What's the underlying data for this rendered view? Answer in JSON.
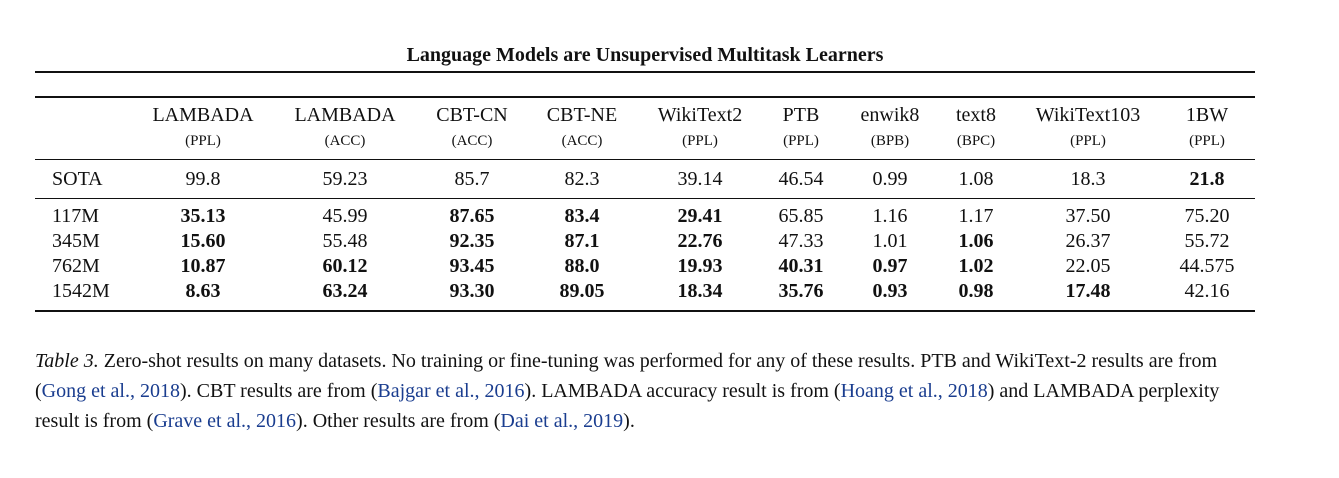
{
  "running_head": "Language Models are Unsupervised Multitask Learners",
  "table": {
    "columns": [
      {
        "name": "LAMBADA",
        "metric": "(PPL)"
      },
      {
        "name": "LAMBADA",
        "metric": "(ACC)"
      },
      {
        "name": "CBT-CN",
        "metric": "(ACC)"
      },
      {
        "name": "CBT-NE",
        "metric": "(ACC)"
      },
      {
        "name": "WikiText2",
        "metric": "(PPL)"
      },
      {
        "name": "PTB",
        "metric": "(PPL)"
      },
      {
        "name": "enwik8",
        "metric": "(BPB)"
      },
      {
        "name": "text8",
        "metric": "(BPC)"
      },
      {
        "name": "WikiText103",
        "metric": "(PPL)"
      },
      {
        "name": "1BW",
        "metric": "(PPL)"
      }
    ],
    "rows": [
      {
        "label": "SOTA",
        "cells": [
          {
            "v": "99.8",
            "b": false
          },
          {
            "v": "59.23",
            "b": false
          },
          {
            "v": "85.7",
            "b": false
          },
          {
            "v": "82.3",
            "b": false
          },
          {
            "v": "39.14",
            "b": false
          },
          {
            "v": "46.54",
            "b": false
          },
          {
            "v": "0.99",
            "b": false
          },
          {
            "v": "1.08",
            "b": false
          },
          {
            "v": "18.3",
            "b": false
          },
          {
            "v": "21.8",
            "b": true
          }
        ]
      },
      {
        "label": "117M",
        "cells": [
          {
            "v": "35.13",
            "b": true
          },
          {
            "v": "45.99",
            "b": false
          },
          {
            "v": "87.65",
            "b": true
          },
          {
            "v": "83.4",
            "b": true
          },
          {
            "v": "29.41",
            "b": true
          },
          {
            "v": "65.85",
            "b": false
          },
          {
            "v": "1.16",
            "b": false
          },
          {
            "v": "1.17",
            "b": false
          },
          {
            "v": "37.50",
            "b": false
          },
          {
            "v": "75.20",
            "b": false
          }
        ]
      },
      {
        "label": "345M",
        "cells": [
          {
            "v": "15.60",
            "b": true
          },
          {
            "v": "55.48",
            "b": false
          },
          {
            "v": "92.35",
            "b": true
          },
          {
            "v": "87.1",
            "b": true
          },
          {
            "v": "22.76",
            "b": true
          },
          {
            "v": "47.33",
            "b": false
          },
          {
            "v": "1.01",
            "b": false
          },
          {
            "v": "1.06",
            "b": true
          },
          {
            "v": "26.37",
            "b": false
          },
          {
            "v": "55.72",
            "b": false
          }
        ]
      },
      {
        "label": "762M",
        "cells": [
          {
            "v": "10.87",
            "b": true
          },
          {
            "v": "60.12",
            "b": true
          },
          {
            "v": "93.45",
            "b": true
          },
          {
            "v": "88.0",
            "b": true
          },
          {
            "v": "19.93",
            "b": true
          },
          {
            "v": "40.31",
            "b": true
          },
          {
            "v": "0.97",
            "b": true
          },
          {
            "v": "1.02",
            "b": true
          },
          {
            "v": "22.05",
            "b": false
          },
          {
            "v": "44.575",
            "b": false
          }
        ]
      },
      {
        "label": "1542M",
        "cells": [
          {
            "v": "8.63",
            "b": true
          },
          {
            "v": "63.24",
            "b": true
          },
          {
            "v": "93.30",
            "b": true
          },
          {
            "v": "89.05",
            "b": true
          },
          {
            "v": "18.34",
            "b": true
          },
          {
            "v": "35.76",
            "b": true
          },
          {
            "v": "0.93",
            "b": true
          },
          {
            "v": "0.98",
            "b": true
          },
          {
            "v": "17.48",
            "b": true
          },
          {
            "v": "42.16",
            "b": false
          }
        ]
      }
    ]
  },
  "caption": {
    "label": "Table 3.",
    "segments": [
      {
        "text": " Zero-shot results on many datasets. No training or fine-tuning was performed for any of these results. PTB and WikiText-2 results are from (",
        "cite": false
      },
      {
        "text": "Gong et al., 2018",
        "cite": true
      },
      {
        "text": "). CBT results are from (",
        "cite": false
      },
      {
        "text": "Bajgar et al., 2016",
        "cite": true
      },
      {
        "text": "). LAMBADA accuracy result is from (",
        "cite": false
      },
      {
        "text": "Hoang et al., 2018",
        "cite": true
      },
      {
        "text": ") and LAMBADA perplexity result is from (",
        "cite": false
      },
      {
        "text": "Grave et al., 2016",
        "cite": true
      },
      {
        "text": "). Other results are from (",
        "cite": false
      },
      {
        "text": "Dai et al., 2019",
        "cite": true
      },
      {
        "text": ").",
        "cite": false
      }
    ]
  },
  "colors": {
    "citation": "#1a3d8f",
    "text": "#111111"
  }
}
